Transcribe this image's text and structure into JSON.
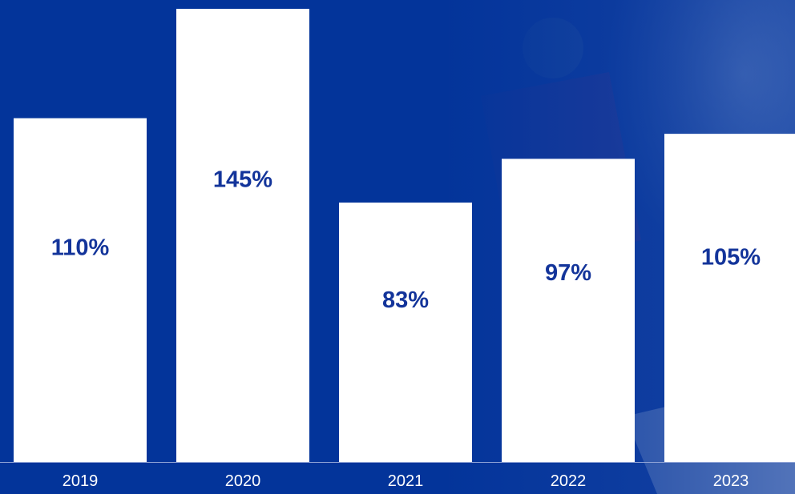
{
  "colors": {
    "background": "#03349a",
    "bar": "#ffffff",
    "bar_label": "#13349a",
    "tick_label": "#ffffff",
    "baseline": "#8fa3d6"
  },
  "chart_data": {
    "type": "bar",
    "categories": [
      "2019",
      "2020",
      "2021",
      "2022",
      "2023"
    ],
    "values": [
      110,
      145,
      83,
      97,
      105
    ],
    "value_labels": [
      "110%",
      "145%",
      "83%",
      "97%",
      "105%"
    ],
    "title": "",
    "xlabel": "",
    "ylabel": "",
    "ylim": [
      0,
      150
    ],
    "grid": false,
    "legend": "none"
  }
}
